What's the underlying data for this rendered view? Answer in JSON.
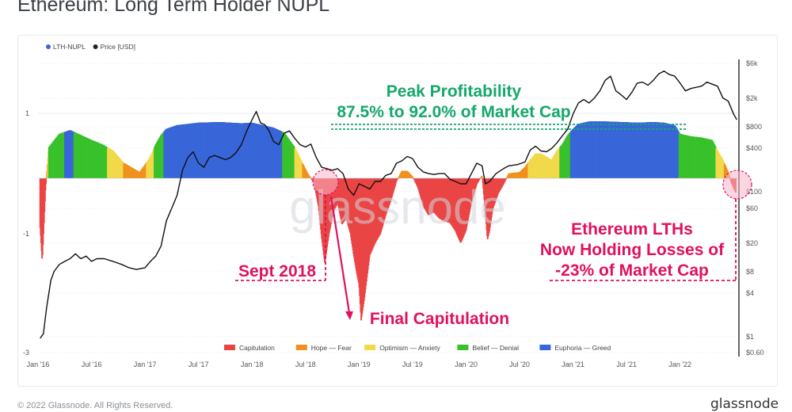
{
  "title": "Ethereum: Long Term Holder NUPL",
  "footer": "© 2022 Glassnode. All Rights Reserved.",
  "brand": "glassnode",
  "watermark": "glassnode",
  "colors": {
    "capitulation": "#ea4545",
    "hope_fear": "#f0901e",
    "optimism_anxiety": "#f2d94a",
    "belief_denial": "#38c12b",
    "euphoria_greed": "#3866d8",
    "price": "#000000",
    "annotation": "#e0105f",
    "peak": "#15a86a"
  },
  "chart_data": {
    "type": "area",
    "legend_top": [
      {
        "name": "LTH-NUPL",
        "color": "#3866d8"
      },
      {
        "name": "Price [USD]",
        "color": "#222222"
      }
    ],
    "legend_bottom": [
      {
        "name": "Capitulation",
        "color": "#ea4545"
      },
      {
        "name": "Hope — Fear",
        "color": "#f0901e"
      },
      {
        "name": "Optimism — Anxiety",
        "color": "#f2d94a"
      },
      {
        "name": "Belief — Denial",
        "color": "#38c12b"
      },
      {
        "name": "Euphoria — Greed",
        "color": "#3866d8"
      }
    ],
    "x_ticks": [
      "Jan '16",
      "Jul '16",
      "Jan '17",
      "Jul '17",
      "Jan '18",
      "Jul '18",
      "Jan '19",
      "Jul '19",
      "Jan '20",
      "Jul '20",
      "Jan '21",
      "Jul '21",
      "Jan '22"
    ],
    "x_range": [
      2016.0,
      2022.55
    ],
    "left_ticks": [
      "1",
      "-1",
      "-3"
    ],
    "right_ticks": [
      "$6k",
      "$2k",
      "$800",
      "$400",
      "$100",
      "$60",
      "$20",
      "$8",
      "$4",
      "$1",
      "$0.60"
    ],
    "log_price_axis": true,
    "nupl_series": [
      [
        2016.02,
        -0.8
      ],
      [
        2016.04,
        -1.35
      ],
      [
        2016.07,
        -0.2
      ],
      [
        2016.1,
        0.5
      ],
      [
        2016.2,
        0.72
      ],
      [
        2016.3,
        0.78
      ],
      [
        2016.4,
        0.7
      ],
      [
        2016.5,
        0.62
      ],
      [
        2016.6,
        0.55
      ],
      [
        2016.7,
        0.45
      ],
      [
        2016.8,
        0.25
      ],
      [
        2016.9,
        0.15
      ],
      [
        2016.95,
        0.1
      ],
      [
        2017.0,
        0.22
      ],
      [
        2017.05,
        0.35
      ],
      [
        2017.1,
        0.55
      ],
      [
        2017.15,
        0.7
      ],
      [
        2017.2,
        0.8
      ],
      [
        2017.3,
        0.86
      ],
      [
        2017.5,
        0.9
      ],
      [
        2017.7,
        0.91
      ],
      [
        2017.9,
        0.89
      ],
      [
        2018.0,
        0.9
      ],
      [
        2018.1,
        0.86
      ],
      [
        2018.2,
        0.82
      ],
      [
        2018.3,
        0.74
      ],
      [
        2018.4,
        0.5
      ],
      [
        2018.45,
        0.32
      ],
      [
        2018.52,
        0.08
      ],
      [
        2018.58,
        -0.08
      ],
      [
        2018.62,
        -0.45
      ],
      [
        2018.65,
        -0.95
      ],
      [
        2018.68,
        -1.38
      ],
      [
        2018.72,
        -0.9
      ],
      [
        2018.76,
        -0.55
      ],
      [
        2018.8,
        -0.4
      ],
      [
        2018.84,
        -0.75
      ],
      [
        2018.88,
        -0.65
      ],
      [
        2018.92,
        -0.9
      ],
      [
        2018.95,
        -1.25
      ],
      [
        2018.98,
        -1.55
      ],
      [
        2019.0,
        -1.72
      ],
      [
        2019.02,
        -2.3
      ],
      [
        2019.05,
        -1.95
      ],
      [
        2019.1,
        -1.25
      ],
      [
        2019.15,
        -1.05
      ],
      [
        2019.2,
        -0.9
      ],
      [
        2019.25,
        -0.6
      ],
      [
        2019.3,
        -0.35
      ],
      [
        2019.35,
        -0.05
      ],
      [
        2019.4,
        0.12
      ],
      [
        2019.45,
        0.12
      ],
      [
        2019.5,
        0.03
      ],
      [
        2019.55,
        -0.15
      ],
      [
        2019.6,
        -0.45
      ],
      [
        2019.65,
        -0.6
      ],
      [
        2019.7,
        -0.55
      ],
      [
        2019.75,
        -0.65
      ],
      [
        2019.8,
        -0.7
      ],
      [
        2019.85,
        -0.72
      ],
      [
        2019.9,
        -0.85
      ],
      [
        2019.95,
        -1.05
      ],
      [
        2020.0,
        -0.85
      ],
      [
        2020.05,
        -0.4
      ],
      [
        2020.1,
        -0.1
      ],
      [
        2020.15,
        0.05
      ],
      [
        2020.18,
        -0.55
      ],
      [
        2020.2,
        -1.0
      ],
      [
        2020.22,
        -0.85
      ],
      [
        2020.25,
        -0.5
      ],
      [
        2020.3,
        -0.25
      ],
      [
        2020.35,
        -0.1
      ],
      [
        2020.4,
        0.08
      ],
      [
        2020.5,
        0.1
      ],
      [
        2020.55,
        0.18
      ],
      [
        2020.6,
        0.3
      ],
      [
        2020.65,
        0.4
      ],
      [
        2020.7,
        0.4
      ],
      [
        2020.75,
        0.35
      ],
      [
        2020.8,
        0.3
      ],
      [
        2020.85,
        0.45
      ],
      [
        2020.9,
        0.55
      ],
      [
        2020.95,
        0.7
      ],
      [
        2021.0,
        0.8
      ],
      [
        2021.05,
        0.88
      ],
      [
        2021.15,
        0.92
      ],
      [
        2021.3,
        0.92
      ],
      [
        2021.45,
        0.91
      ],
      [
        2021.6,
        0.9
      ],
      [
        2021.75,
        0.91
      ],
      [
        2021.85,
        0.9
      ],
      [
        2021.95,
        0.86
      ],
      [
        2022.0,
        0.72
      ],
      [
        2022.1,
        0.68
      ],
      [
        2022.2,
        0.66
      ],
      [
        2022.3,
        0.62
      ],
      [
        2022.35,
        0.45
      ],
      [
        2022.4,
        0.3
      ],
      [
        2022.45,
        0.1
      ],
      [
        2022.48,
        -0.08
      ],
      [
        2022.52,
        -0.23
      ]
    ],
    "price_series": [
      [
        2016.02,
        0.95
      ],
      [
        2016.05,
        1.1
      ],
      [
        2016.08,
        2.5
      ],
      [
        2016.12,
        6
      ],
      [
        2016.15,
        8
      ],
      [
        2016.2,
        10
      ],
      [
        2016.25,
        11
      ],
      [
        2016.3,
        12
      ],
      [
        2016.35,
        14
      ],
      [
        2016.4,
        12
      ],
      [
        2016.45,
        13
      ],
      [
        2016.5,
        11
      ],
      [
        2016.55,
        12
      ],
      [
        2016.62,
        12
      ],
      [
        2016.7,
        11
      ],
      [
        2016.78,
        10
      ],
      [
        2016.85,
        9
      ],
      [
        2016.92,
        8.5
      ],
      [
        2017.0,
        9
      ],
      [
        2017.05,
        11
      ],
      [
        2017.1,
        13
      ],
      [
        2017.15,
        18
      ],
      [
        2017.2,
        40
      ],
      [
        2017.25,
        60
      ],
      [
        2017.3,
        90
      ],
      [
        2017.35,
        200
      ],
      [
        2017.4,
        300
      ],
      [
        2017.45,
        360
      ],
      [
        2017.5,
        250
      ],
      [
        2017.55,
        220
      ],
      [
        2017.6,
        300
      ],
      [
        2017.65,
        320
      ],
      [
        2017.7,
        300
      ],
      [
        2017.75,
        280
      ],
      [
        2017.8,
        300
      ],
      [
        2017.85,
        350
      ],
      [
        2017.9,
        450
      ],
      [
        2017.95,
        700
      ],
      [
        2018.0,
        1000
      ],
      [
        2018.04,
        1300
      ],
      [
        2018.08,
        900
      ],
      [
        2018.12,
        850
      ],
      [
        2018.16,
        700
      ],
      [
        2018.2,
        500
      ],
      [
        2018.25,
        450
      ],
      [
        2018.3,
        650
      ],
      [
        2018.35,
        700
      ],
      [
        2018.4,
        550
      ],
      [
        2018.45,
        450
      ],
      [
        2018.5,
        420
      ],
      [
        2018.55,
        460
      ],
      [
        2018.6,
        300
      ],
      [
        2018.65,
        220
      ],
      [
        2018.7,
        210
      ],
      [
        2018.75,
        200
      ],
      [
        2018.8,
        210
      ],
      [
        2018.85,
        180
      ],
      [
        2018.9,
        110
      ],
      [
        2018.95,
        90
      ],
      [
        2019.0,
        130
      ],
      [
        2019.05,
        120
      ],
      [
        2019.1,
        110
      ],
      [
        2019.15,
        140
      ],
      [
        2019.2,
        140
      ],
      [
        2019.25,
        170
      ],
      [
        2019.3,
        180
      ],
      [
        2019.35,
        250
      ],
      [
        2019.4,
        270
      ],
      [
        2019.45,
        310
      ],
      [
        2019.5,
        290
      ],
      [
        2019.55,
        220
      ],
      [
        2019.6,
        190
      ],
      [
        2019.65,
        180
      ],
      [
        2019.7,
        175
      ],
      [
        2019.75,
        180
      ],
      [
        2019.8,
        180
      ],
      [
        2019.85,
        150
      ],
      [
        2019.9,
        140
      ],
      [
        2019.95,
        130
      ],
      [
        2020.0,
        130
      ],
      [
        2020.05,
        180
      ],
      [
        2020.1,
        250
      ],
      [
        2020.15,
        230
      ],
      [
        2020.18,
        130
      ],
      [
        2020.22,
        140
      ],
      [
        2020.28,
        180
      ],
      [
        2020.35,
        210
      ],
      [
        2020.4,
        230
      ],
      [
        2020.48,
        240
      ],
      [
        2020.55,
        260
      ],
      [
        2020.6,
        380
      ],
      [
        2020.65,
        430
      ],
      [
        2020.7,
        370
      ],
      [
        2020.75,
        360
      ],
      [
        2020.8,
        400
      ],
      [
        2020.85,
        480
      ],
      [
        2020.9,
        600
      ],
      [
        2020.95,
        740
      ],
      [
        2021.0,
        1200
      ],
      [
        2021.05,
        1700
      ],
      [
        2021.1,
        1900
      ],
      [
        2021.15,
        1700
      ],
      [
        2021.2,
        2000
      ],
      [
        2021.25,
        2500
      ],
      [
        2021.3,
        3500
      ],
      [
        2021.35,
        4000
      ],
      [
        2021.4,
        2500
      ],
      [
        2021.45,
        2200
      ],
      [
        2021.5,
        1900
      ],
      [
        2021.55,
        2400
      ],
      [
        2021.6,
        3200
      ],
      [
        2021.65,
        3300
      ],
      [
        2021.7,
        3000
      ],
      [
        2021.75,
        3500
      ],
      [
        2021.8,
        4300
      ],
      [
        2021.85,
        4700
      ],
      [
        2021.9,
        4200
      ],
      [
        2021.95,
        4000
      ],
      [
        2022.0,
        3200
      ],
      [
        2022.05,
        2500
      ],
      [
        2022.1,
        2700
      ],
      [
        2022.15,
        2800
      ],
      [
        2022.2,
        2900
      ],
      [
        2022.25,
        3300
      ],
      [
        2022.3,
        3100
      ],
      [
        2022.35,
        2900
      ],
      [
        2022.4,
        2000
      ],
      [
        2022.45,
        1800
      ],
      [
        2022.5,
        1200
      ],
      [
        2022.53,
        1000
      ]
    ],
    "annotations": {
      "peak_line1": "Peak Profitability",
      "peak_line2": "87.5% to 92.0% of Market Cap",
      "sept": "Sept 2018",
      "final": "Final Capitulation",
      "lth_line1": "Ethereum LTHs",
      "lth_line2": "Now Holding Losses of",
      "lth_line3": "-23% of Market Cap"
    }
  }
}
